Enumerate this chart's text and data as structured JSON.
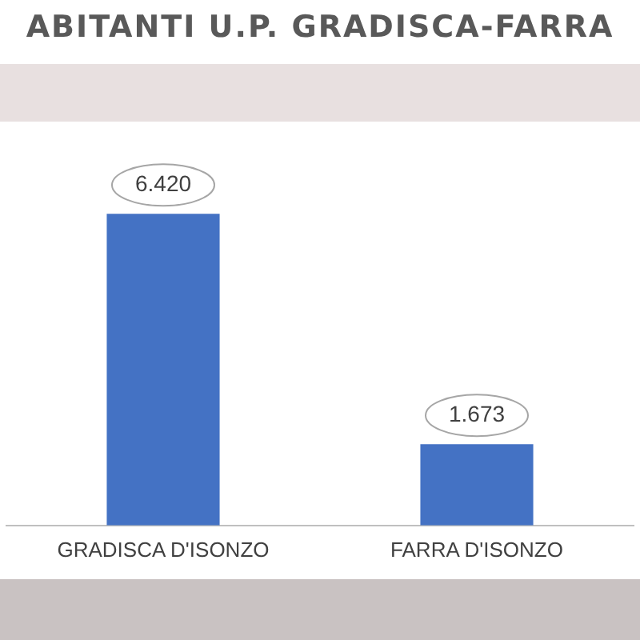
{
  "chart_data": {
    "type": "bar",
    "title": "ABITANTI U.P. GRADISCA-FARRA",
    "categories": [
      "GRADISCA D'ISONZO",
      "FARRA D'ISONZO"
    ],
    "values": [
      6420,
      1673
    ],
    "color": "#4472c4",
    "value_labels": [
      "6.420",
      "1.673"
    ]
  }
}
